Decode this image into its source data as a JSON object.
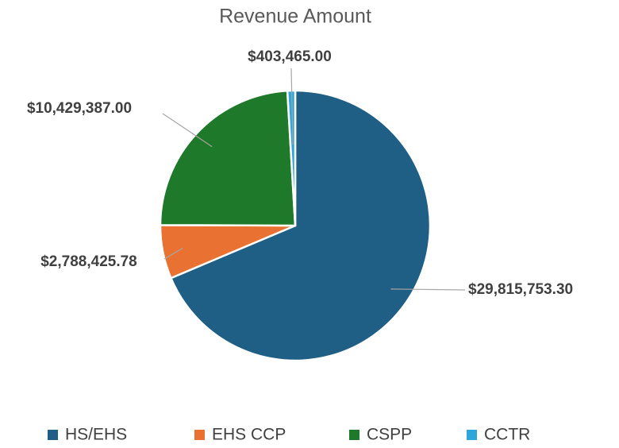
{
  "chart_data": {
    "type": "pie",
    "title": "Revenue Amount",
    "categories": [
      "HS/EHS",
      "EHS CCP",
      "CSPP",
      "CCTR"
    ],
    "values": [
      29815753.3,
      2788425.78,
      10429387.0,
      403465.0
    ],
    "value_labels": [
      "$29,815,753.30",
      "$2,788,425.78",
      "$10,429,387.00",
      "$403,465.00"
    ],
    "colors": [
      "#1f5f86",
      "#e97132",
      "#1e7a2a",
      "#2ea6dc"
    ],
    "legend": "bottom"
  }
}
